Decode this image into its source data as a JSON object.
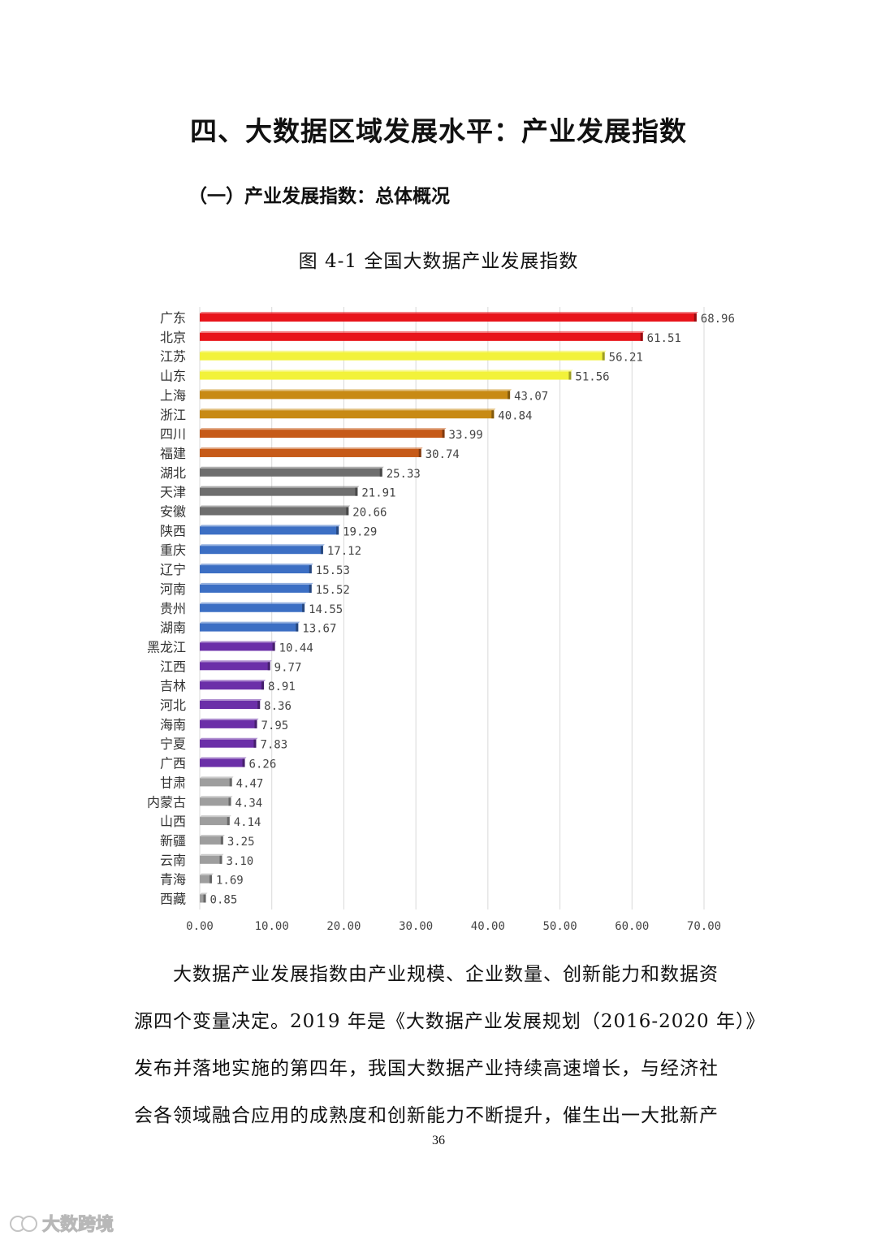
{
  "document": {
    "heading": "四、大数据区域发展水平：产业发展指数",
    "subheading": "（一）产业发展指数：总体概况",
    "figure_caption": "图 4-1  全国大数据产业发展指数",
    "paragraph_lines": [
      "　　大数据产业发展指数由产业规模、企业数量、创新能力和数据资",
      "源四个变量决定。2019 年是《大数据产业发展规划（2016-2020 年）》",
      "发布并落地实施的第四年，我国大数据产业持续高速增长，与经济社",
      "会各领域融合应用的成熟度和创新能力不断提升，催生出一大批新产"
    ],
    "page_number": "36",
    "watermark": "大数跨境"
  },
  "chart_data": {
    "type": "bar",
    "orientation": "horizontal",
    "categories": [
      "广东",
      "北京",
      "江苏",
      "山东",
      "上海",
      "浙江",
      "四川",
      "福建",
      "湖北",
      "天津",
      "安徽",
      "陕西",
      "重庆",
      "辽宁",
      "河南",
      "贵州",
      "湖南",
      "黑龙江",
      "江西",
      "吉林",
      "河北",
      "海南",
      "宁夏",
      "广西",
      "甘肃",
      "内蒙古",
      "山西",
      "新疆",
      "云南",
      "青海",
      "西藏"
    ],
    "values": [
      68.96,
      61.51,
      56.21,
      51.56,
      43.07,
      40.84,
      33.99,
      30.74,
      25.33,
      21.91,
      20.66,
      19.29,
      17.12,
      15.53,
      15.52,
      14.55,
      13.67,
      10.44,
      9.77,
      8.91,
      8.36,
      7.95,
      7.83,
      6.26,
      4.47,
      4.34,
      4.14,
      3.25,
      3.1,
      1.69,
      0.85
    ],
    "value_labels": [
      "68.96",
      "61.51",
      "56.21",
      "51.56",
      "43.07",
      "40.84",
      "33.99",
      "30.74",
      "25.33",
      "21.91",
      "20.66",
      "19.29",
      "17.12",
      "15.53",
      "15.52",
      "14.55",
      "13.67",
      "10.44",
      "9.77",
      "8.91",
      "8.36",
      "7.95",
      "7.83",
      "6.26",
      "4.47",
      "4.34",
      "4.14",
      "3.25",
      "3.10",
      "1.69",
      "0.85"
    ],
    "bar_colors": [
      "#e8141b",
      "#e8141b",
      "#f2f23a",
      "#f2f23a",
      "#c88a14",
      "#c88a14",
      "#c65a18",
      "#c65a18",
      "#6e6e6e",
      "#6e6e6e",
      "#6e6e6e",
      "#3c6fc4",
      "#3c6fc4",
      "#3c6fc4",
      "#3c6fc4",
      "#3c6fc4",
      "#3c6fc4",
      "#6b2fa8",
      "#6b2fa8",
      "#6b2fa8",
      "#6b2fa8",
      "#6b2fa8",
      "#6b2fa8",
      "#6b2fa8",
      "#9e9e9e",
      "#9e9e9e",
      "#9e9e9e",
      "#9e9e9e",
      "#9e9e9e",
      "#9e9e9e",
      "#9e9e9e"
    ],
    "x_ticks": [
      "0.00",
      "10.00",
      "20.00",
      "30.00",
      "40.00",
      "50.00",
      "60.00",
      "70.00"
    ],
    "xlim": [
      0,
      70
    ],
    "grid": "vertical",
    "title": "",
    "xlabel": "",
    "ylabel": ""
  }
}
